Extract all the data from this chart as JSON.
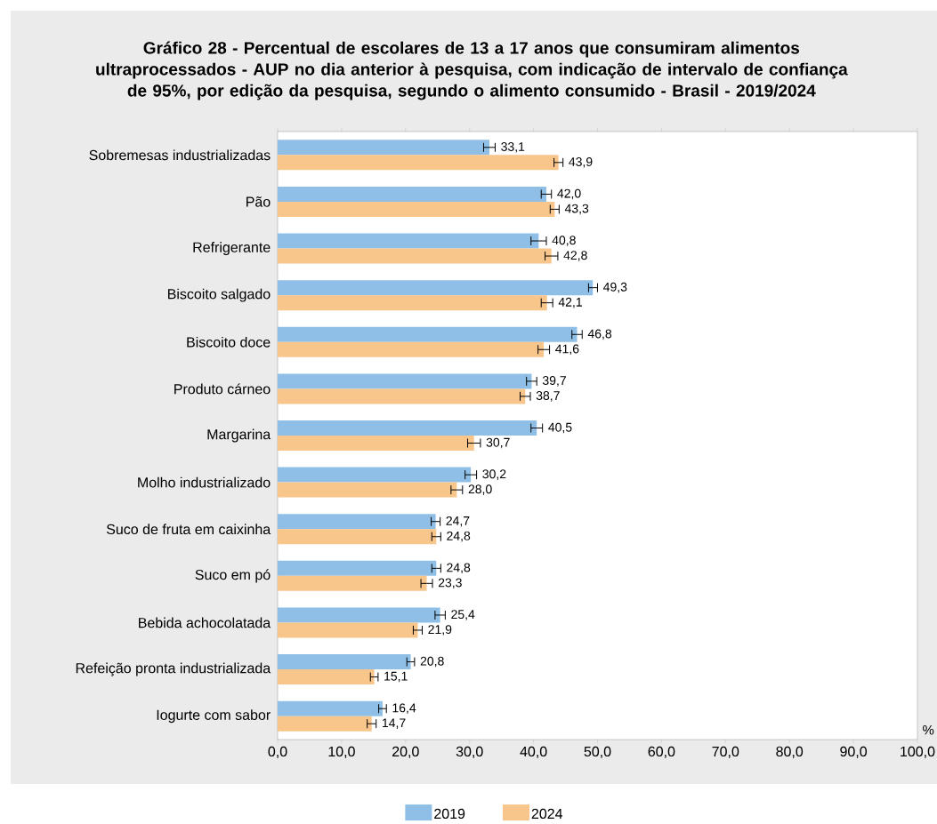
{
  "chart_data": {
    "type": "bar",
    "orientation": "horizontal",
    "title": "Gráfico 28 - Percentual de escolares de 13 a 17 anos que consumiram alimentos ultraprocessados - AUP no dia anterior à pesquisa, com indicação de intervalo de confiança de 95%, por edição da pesquisa, segundo o alimento consumido - Brasil - 2019/2024",
    "xlabel": "%",
    "categories": [
      "Sobremesas industrializadas",
      "Pão",
      "Refrigerante",
      "Biscoito salgado",
      "Biscoito doce",
      "Produto cárneo",
      "Margarina",
      "Molho industrializado",
      "Suco de fruta em caixinha",
      "Suco em pó",
      "Bebida achocolatada",
      "Refeição pronta industrializada",
      "Iogurte com sabor"
    ],
    "series": [
      {
        "name": "2019",
        "color": "#8fbfe6",
        "values": [
          33.1,
          42.0,
          40.8,
          49.3,
          46.8,
          39.7,
          40.5,
          30.2,
          24.7,
          24.8,
          25.4,
          20.8,
          16.4
        ],
        "errors": [
          0.9,
          0.8,
          1.2,
          0.7,
          0.8,
          0.8,
          0.9,
          0.9,
          0.7,
          0.7,
          0.8,
          0.6,
          0.6
        ],
        "value_labels": [
          "33,1",
          "42,0",
          "40,8",
          "49,3",
          "46,8",
          "39,7",
          "40,5",
          "30,2",
          "24,7",
          "24,8",
          "25,4",
          "20,8",
          "16,4"
        ]
      },
      {
        "name": "2024",
        "color": "#f8c58a",
        "values": [
          43.9,
          43.3,
          42.8,
          42.1,
          41.6,
          38.7,
          30.7,
          28.0,
          24.8,
          23.3,
          21.9,
          15.1,
          14.7
        ],
        "errors": [
          0.7,
          0.7,
          1.0,
          0.9,
          0.9,
          0.8,
          1.0,
          0.9,
          0.7,
          0.9,
          0.7,
          0.6,
          0.7
        ],
        "value_labels": [
          "43,9",
          "43,3",
          "42,8",
          "42,1",
          "41,6",
          "38,7",
          "30,7",
          "28,0",
          "24,8",
          "23,3",
          "21,9",
          "15,1",
          "14,7"
        ]
      }
    ],
    "xlim": [
      0,
      100
    ],
    "xticks": [
      {
        "value": 0,
        "label": "0,0"
      },
      {
        "value": 10,
        "label": "10,0"
      },
      {
        "value": 20,
        "label": "20,0"
      },
      {
        "value": 30,
        "label": "30,0"
      },
      {
        "value": 40,
        "label": "40,0"
      },
      {
        "value": 50,
        "label": "50,0"
      },
      {
        "value": 60,
        "label": "60,0"
      },
      {
        "value": 70,
        "label": "70,0"
      },
      {
        "value": 80,
        "label": "80,0"
      },
      {
        "value": 90,
        "label": "90,0"
      },
      {
        "value": 100,
        "label": "100,0"
      }
    ],
    "grid": false,
    "legend": "bottom"
  }
}
